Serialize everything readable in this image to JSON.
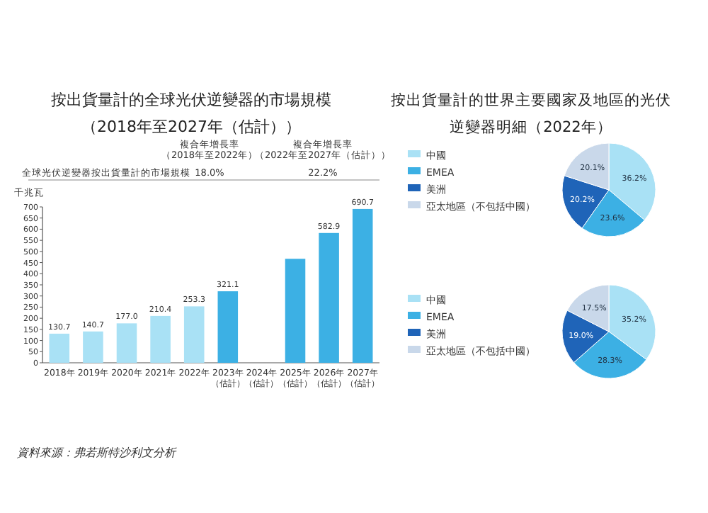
{
  "chart_data": [
    {
      "type": "bar",
      "title": "按出貨量計的全球光伏逆變器的市場規模",
      "subtitle": "（2018年至2027年（估計））",
      "ylabel": "千兆瓦",
      "categories": [
        "2018年",
        "2019年",
        "2020年",
        "2021年",
        "2022年",
        "2023年（估計）",
        "2024年（估計）",
        "2025年（估計）",
        "2026年（估計）",
        "2027年（估計）"
      ],
      "values": [
        130.7,
        140.7,
        177.0,
        210.4,
        253.3,
        321.1,
        null,
        467,
        582.9,
        690.7
      ],
      "value_labels": [
        "130.7",
        "140.7",
        "177.0",
        "210.4",
        "253.3",
        "321.1",
        null,
        null,
        "582.9",
        "690.7"
      ],
      "colors": [
        "#a9e1f5",
        "#a9e1f5",
        "#a9e1f5",
        "#a9e1f5",
        "#a9e1f5",
        "#3cb0e4",
        null,
        "#3cb0e4",
        "#3cb0e4",
        "#3cb0e4"
      ],
      "ylim": [
        0,
        700
      ],
      "yticks": [
        0,
        50,
        100,
        150,
        200,
        250,
        300,
        350,
        400,
        450,
        500,
        550,
        600,
        650,
        700
      ],
      "annotations": [
        "複合年增長率（2018年至2022年）",
        "複合年增長率（2022年至2027年（估計））",
        "全球光伏逆變器按出貨量計的市場規模",
        "18.0%",
        "22.2%",
        "資料來源：弗若斯特沙利文分析"
      ]
    },
    {
      "type": "pie",
      "title": "按出貨量計的世界主要國家及地區的光伏逆變器明細（2022年）",
      "categories": [
        "中國",
        "EMEA",
        "美洲",
        "亞太地區（不包括中國）"
      ],
      "values": [
        36.2,
        23.6,
        20.2,
        20.1
      ],
      "value_labels": [
        "36.2%",
        "23.6%",
        "20.2%",
        "20.1%"
      ],
      "colors": [
        "#a9e1f5",
        "#3cb0e4",
        "#1f64b8",
        "#c9d8ea"
      ],
      "legend": "left"
    },
    {
      "type": "pie",
      "categories": [
        "中國",
        "EMEA",
        "美洲",
        "亞太地區（不包括中國）"
      ],
      "values": [
        35.2,
        28.3,
        19.0,
        17.5
      ],
      "value_labels": [
        "35.2%",
        "28.3%",
        "19.0%",
        "17.5%"
      ],
      "colors": [
        "#a9e1f5",
        "#3cb0e4",
        "#1f64b8",
        "#c9d8ea"
      ],
      "legend": "left"
    }
  ]
}
